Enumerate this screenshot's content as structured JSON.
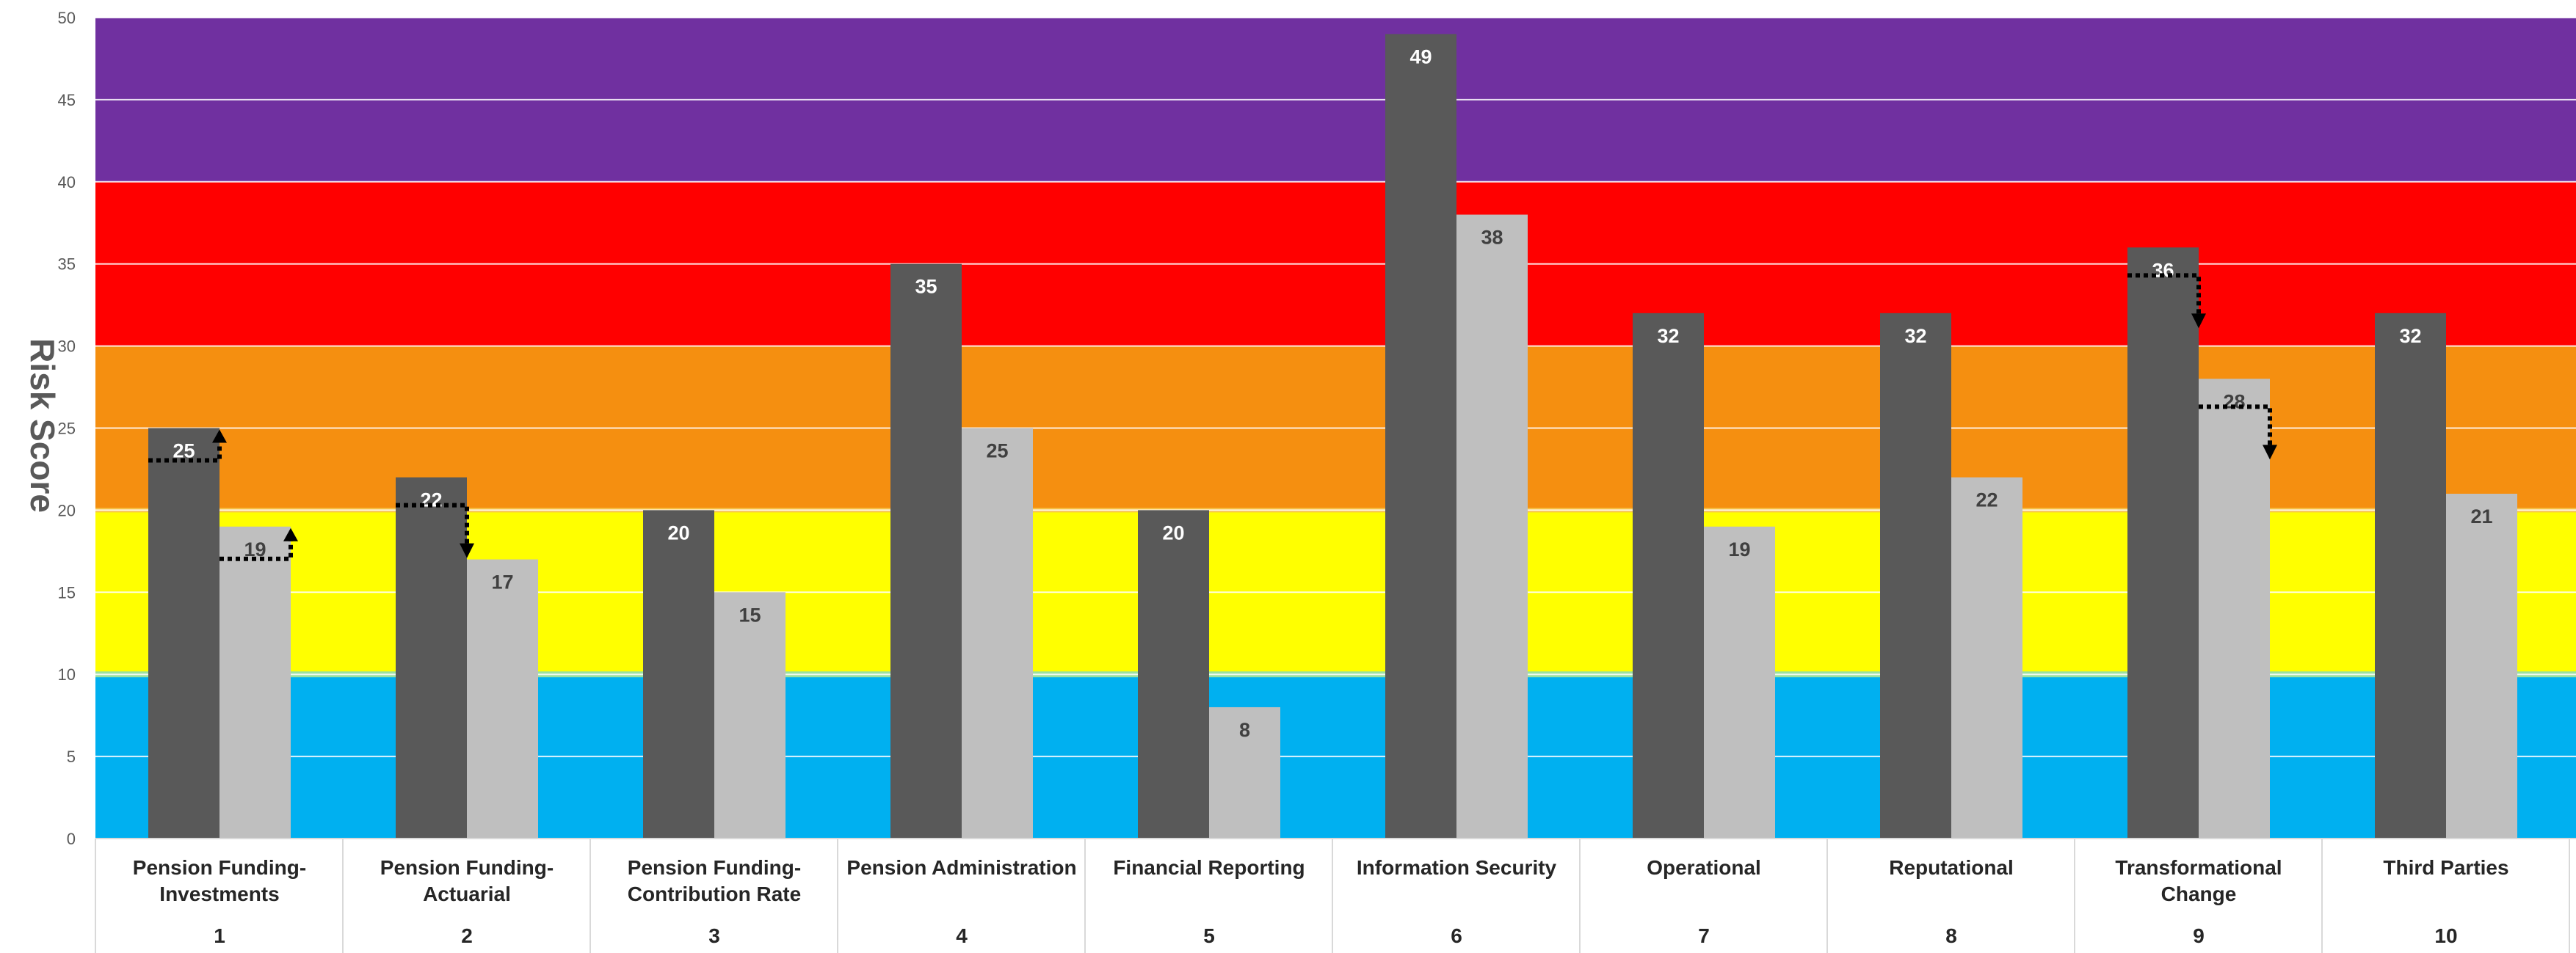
{
  "chart_data": {
    "type": "bar",
    "ylabel": "Risk Score",
    "ylim": [
      0,
      50
    ],
    "yticks": [
      0,
      5,
      10,
      15,
      20,
      25,
      30,
      35,
      40,
      45,
      50
    ],
    "categories": [
      {
        "name": "Pension Funding-\nInvestments",
        "number": "1"
      },
      {
        "name": "Pension Funding-\nActuarial",
        "number": "2"
      },
      {
        "name": "Pension Funding-\nContribution Rate",
        "number": "3"
      },
      {
        "name": "Pension Administration",
        "number": "4"
      },
      {
        "name": "Financial Reporting",
        "number": "5"
      },
      {
        "name": "Information Security",
        "number": "6"
      },
      {
        "name": "Operational",
        "number": "7"
      },
      {
        "name": "Reputational",
        "number": "8"
      },
      {
        "name": "Transformational\nChange",
        "number": "9"
      },
      {
        "name": "Third Parties",
        "number": "10"
      }
    ],
    "series": [
      {
        "values": [
          25,
          22,
          20,
          35,
          20,
          49,
          32,
          32,
          36,
          32
        ],
        "color": "#595959",
        "label_color": "#ffffff"
      },
      {
        "values": [
          19,
          17,
          15,
          25,
          8,
          38,
          19,
          22,
          28,
          21
        ],
        "color": "#bfbfbf",
        "label_color": "#404040"
      }
    ],
    "bands": [
      {
        "from": 0,
        "to": 10,
        "color": "#00b0f0"
      },
      {
        "from": 10,
        "to": 20,
        "color": "#ffff00"
      },
      {
        "from": 20,
        "to": 30,
        "color": "#f58f10"
      },
      {
        "from": 30,
        "to": 40,
        "color": "#ff0000"
      },
      {
        "from": 40,
        "to": 50,
        "color": "#7030a0"
      }
    ],
    "trend_arrows": [
      {
        "category": 0,
        "series": 0,
        "direction": "up"
      },
      {
        "category": 0,
        "series": 1,
        "direction": "up"
      },
      {
        "category": 1,
        "series": 0,
        "direction": "down"
      },
      {
        "category": 8,
        "series": 0,
        "direction": "down"
      },
      {
        "category": 8,
        "series": 1,
        "direction": "down"
      }
    ],
    "grid": true
  }
}
